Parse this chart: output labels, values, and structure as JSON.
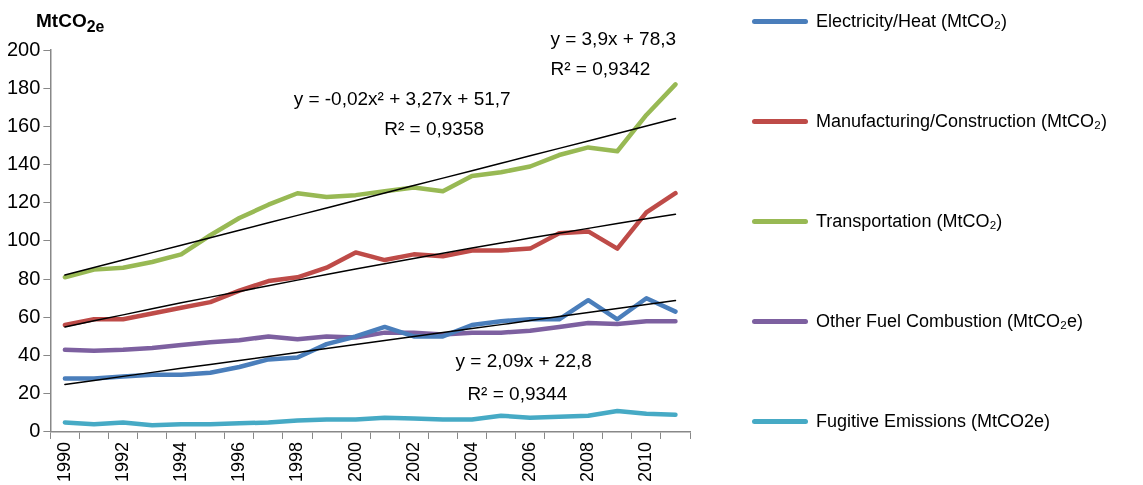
{
  "chart_data": {
    "type": "line",
    "ylabel": "MtCO$_{2e}$",
    "categories": [
      "1990",
      null,
      "1992",
      null,
      "1994",
      null,
      "1996",
      null,
      "1998",
      null,
      "2000",
      null,
      "2002",
      null,
      "2004",
      null,
      "2006",
      null,
      "2008",
      null,
      "2010",
      null
    ],
    "ylim": [
      0,
      200
    ],
    "yticks": [
      0,
      20,
      40,
      60,
      80,
      100,
      120,
      140,
      160,
      180,
      200
    ],
    "grid": false,
    "legend": "right",
    "marker": "none",
    "line_style": "solid",
    "series": [
      {
        "name": "Electricity/Heat (MtCO₂)",
        "color": "#4a7ebb",
        "values": [
          28,
          28,
          29,
          30,
          30,
          31,
          34,
          38,
          39,
          46,
          50,
          55,
          50,
          50,
          56,
          58,
          59,
          59,
          69,
          59,
          70,
          63
        ]
      },
      {
        "name": "Manufacturing/Construction (MtCO₂)",
        "color": "#be4b48",
        "values": [
          56,
          59,
          59,
          62,
          65,
          68,
          74,
          79,
          81,
          86,
          94,
          90,
          93,
          92,
          95,
          95,
          96,
          104,
          105,
          96,
          115,
          125
        ]
      },
      {
        "name": "Transportation (MtCO₂)",
        "color": "#98b954",
        "values": [
          81,
          85,
          86,
          89,
          93,
          103,
          112,
          119,
          125,
          123,
          124,
          126,
          128,
          126,
          134,
          136,
          139,
          145,
          149,
          147,
          166,
          182
        ]
      },
      {
        "name": "Other Fuel Combustion (MtCO₂e)",
        "color": "#7d60a0",
        "values": [
          43,
          42.5,
          43,
          44,
          45.5,
          47,
          48,
          50,
          48.5,
          50,
          49.5,
          52,
          52,
          51,
          52,
          52,
          53,
          55,
          57,
          56.5,
          58,
          58
        ]
      },
      {
        "name": "Fugitive Emissions (MtCO2e)",
        "color": "#46aac5",
        "values": [
          5,
          4,
          5,
          3.5,
          4,
          4,
          4.5,
          5,
          6,
          6.5,
          6.5,
          7.5,
          7,
          6.5,
          6.5,
          8.5,
          7.5,
          8,
          8.5,
          11,
          9.5,
          9
        ]
      },
      {
        "type": "line",
        "color": "#000000",
        "values": [
          82.2,
          86.1,
          90,
          93.9,
          97.8,
          101.7,
          105.6,
          109.5,
          113.4,
          117.3,
          121.2,
          125.1,
          129,
          132.9,
          136.8,
          140.7,
          144.6,
          148.5,
          152.4,
          156.3,
          160.2,
          164.1
        ]
      },
      {
        "type": "line",
        "color": "#000000",
        "values": [
          55,
          58.2,
          61.3,
          64.5,
          67.6,
          70.6,
          73.6,
          76.6,
          79.5,
          82.4,
          85.3,
          88.1,
          90.8,
          93.6,
          96.3,
          98.9,
          101.5,
          104.1,
          106.6,
          109.1,
          111.6,
          114
        ]
      },
      {
        "type": "line",
        "color": "#000000",
        "values": [
          24.9,
          27,
          29.1,
          31.2,
          33.3,
          35.3,
          37.4,
          39.5,
          41.6,
          43.7,
          45.8,
          47.9,
          50,
          52.1,
          54.2,
          56.2,
          58.3,
          60.4,
          62.5,
          64.6,
          66.7,
          68.8
        ]
      }
    ],
    "annotations": [
      "y = 3,9x + 78,3",
      "R² = 0,9342",
      "y = -0,02x² + 3,27x + 51,7",
      "R² = 0,9358",
      "y = 2,09x + 22,8",
      "R² = 0,9344"
    ]
  }
}
